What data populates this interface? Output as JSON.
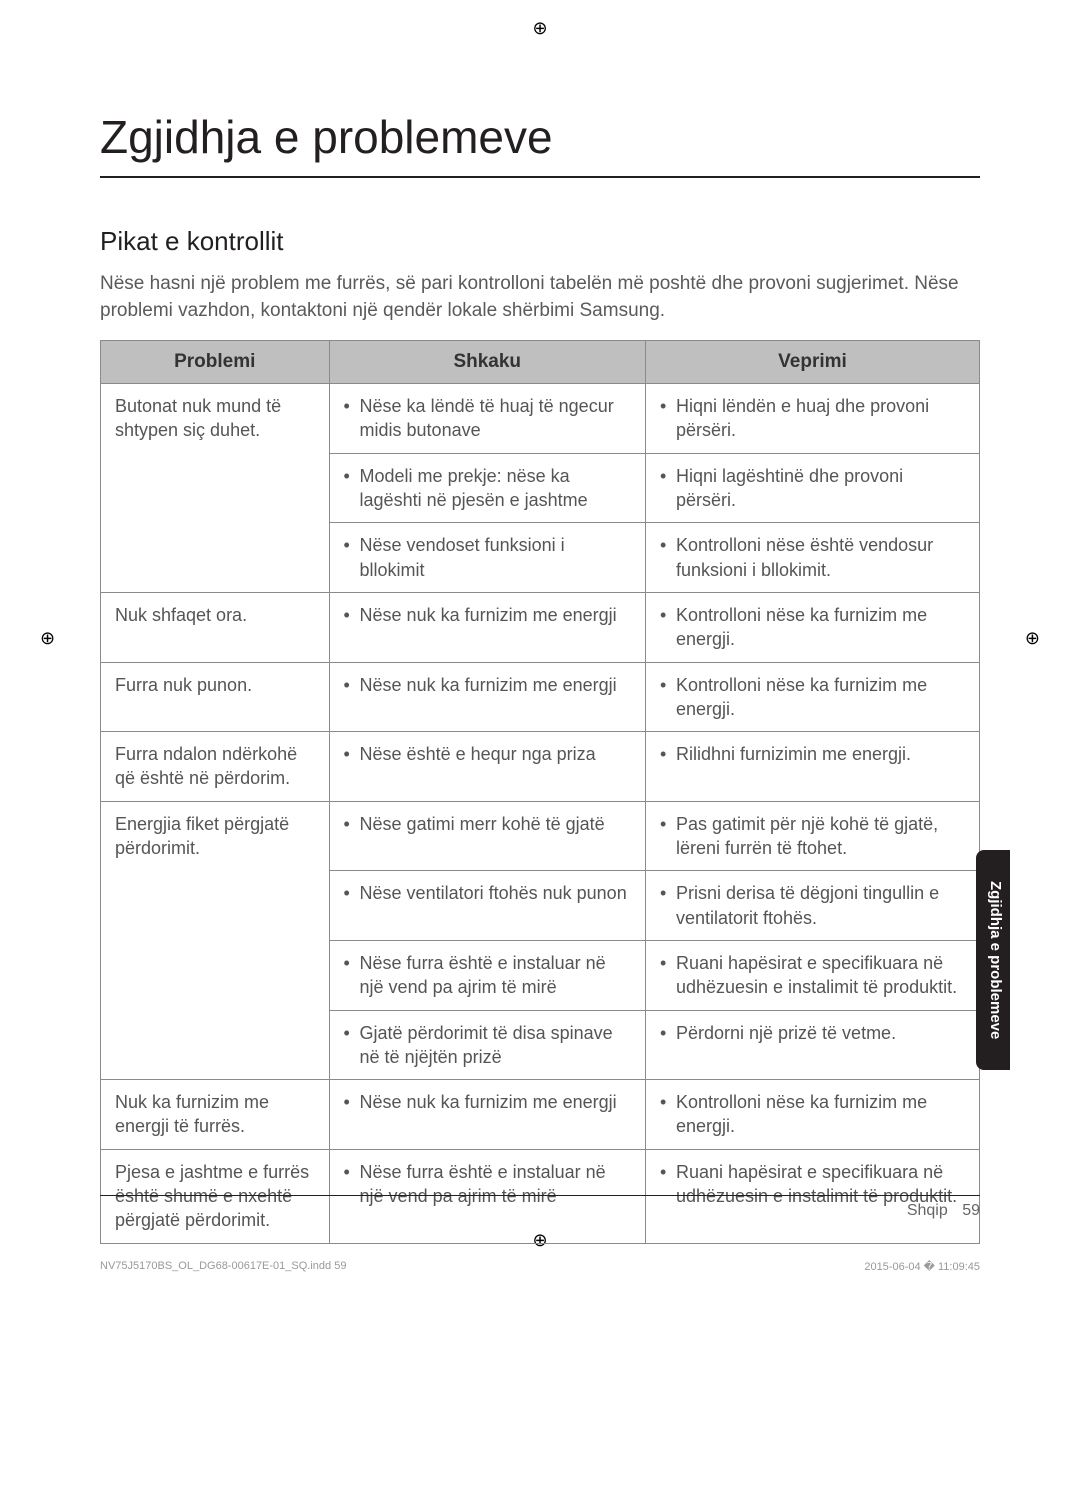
{
  "title": "Zgjidhja e problemeve",
  "section_heading": "Pikat e kontrollit",
  "intro": "Nëse hasni një problem me furrës, së pari kontrolloni tabelën më poshtë dhe provoni sugjerimet. Nëse problemi vazhdon, kontaktoni një qendër lokale shërbimi Samsung.",
  "headers": {
    "c1": "Problemi",
    "c2": "Shkaku",
    "c3": "Veprimi"
  },
  "rows": [
    {
      "problem": "Butonat nuk mund të shtypen siç duhet.",
      "span": 3,
      "pairs": [
        {
          "cause": "Nëse ka lëndë të huaj të ngecur midis butonave",
          "action": "Hiqni lëndën e huaj dhe provoni përsëri."
        },
        {
          "cause": "Modeli me prekje: nëse ka lagështi në pjesën e jashtme",
          "action": "Hiqni lagështinë dhe provoni përsëri."
        },
        {
          "cause": "Nëse vendoset funksioni i bllokimit",
          "action": "Kontrolloni nёse është vendosur funksioni i bllokimit."
        }
      ]
    },
    {
      "problem": "Nuk shfaqet ora.",
      "span": 1,
      "pairs": [
        {
          "cause": "Nëse nuk ka furnizim me energji",
          "action": "Kontrolloni nёse ka furnizim me energji."
        }
      ]
    },
    {
      "problem": "Furra nuk punon.",
      "span": 1,
      "pairs": [
        {
          "cause": "Nëse nuk ka furnizim me energji",
          "action": "Kontrolloni nёse ka furnizim me energji."
        }
      ]
    },
    {
      "problem": "Furra ndalon ndërkohë që është në përdorim.",
      "span": 1,
      "pairs": [
        {
          "cause": "Nëse është e hequr nga priza",
          "action": "Rilidhni furnizimin me energji."
        }
      ]
    },
    {
      "problem": "Energjia fiket përgjatë përdorimit.",
      "span": 4,
      "pairs": [
        {
          "cause": "Nëse gatimi merr kohë të gjatë",
          "action": "Pas gatimit për një kohë të gjatë, lëreni furrën të ftohet."
        },
        {
          "cause": "Nëse ventilatori ftohës nuk punon",
          "action": "Prisni derisa të dëgjoni tingullin e ventilatorit ftohës."
        },
        {
          "cause": "Nëse furra është e instaluar në një vend pa ajrim të mirë",
          "action": "Ruani hapësirat e specifikuara në udhëzuesin e instalimit të produktit."
        },
        {
          "cause": "Gjatë përdorimit të disa spinave në të njëjtën prizë",
          "action": "Përdorni një prizë të vetme."
        }
      ]
    },
    {
      "problem": "Nuk ka furnizim me energji të furrës.",
      "span": 1,
      "pairs": [
        {
          "cause": "Nëse nuk ka furnizim me energji",
          "action": "Kontrolloni nёse ka furnizim me energji."
        }
      ]
    },
    {
      "problem": "Pjesa e jashtme e furrës është shumë e nxehtë përgjatë përdorimit.",
      "span": 1,
      "pairs": [
        {
          "cause": "Nëse furra është e instaluar në një vend pa ajrim të mirë",
          "action": "Ruani hapësirat e specifikuara në udhëzuesin e instalimit të produktit."
        }
      ]
    }
  ],
  "side_tab": "Zgjidhja e problemeve",
  "footer_lang": "Shqip",
  "footer_page": "59",
  "print_left": "NV75J5170BS_OL_DG68-00617E-01_SQ.indd   59",
  "print_right": "2015-06-04   � 11:09:45",
  "reg_glyph": "⊕"
}
